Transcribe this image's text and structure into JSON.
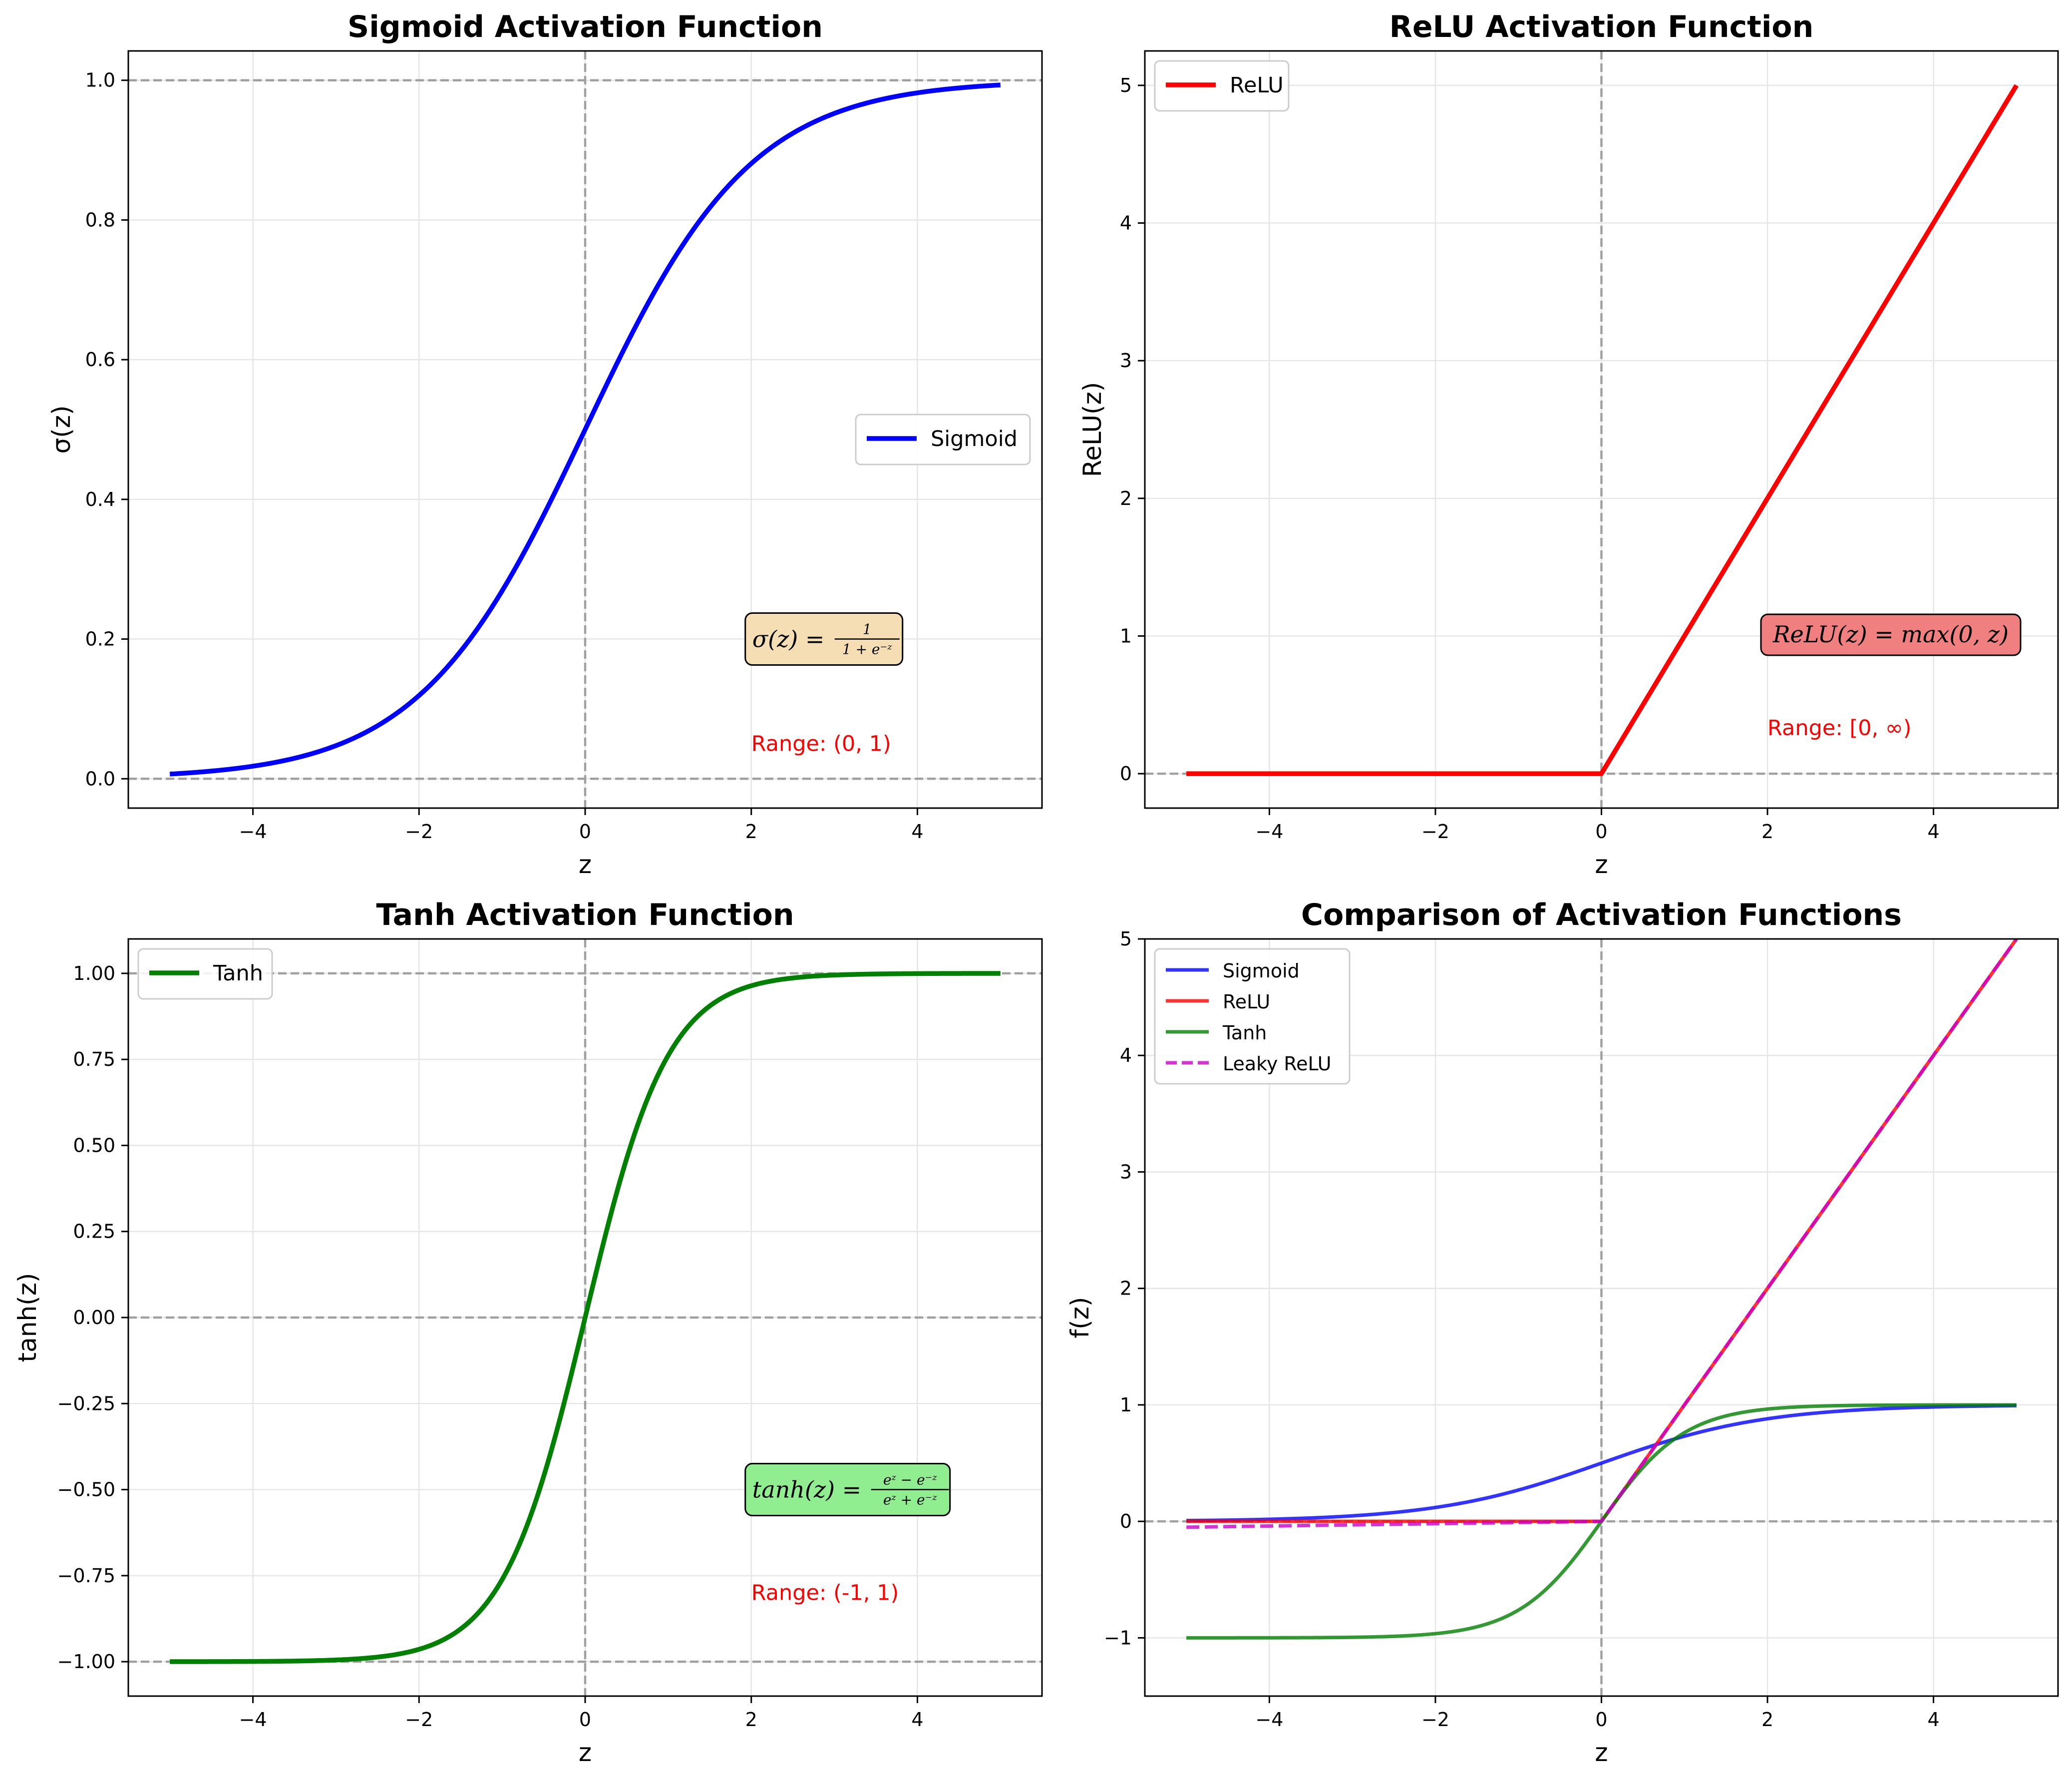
{
  "chart_data": [
    {
      "type": "line",
      "title": "Sigmoid Activation Function",
      "xlabel": "z",
      "ylabel": "σ(z)",
      "xlim": [
        -5.5,
        5.5
      ],
      "ylim": [
        -0.042,
        1.042
      ],
      "xticks": [
        -4,
        -2,
        0,
        2,
        4
      ],
      "yticks": [
        0.0,
        0.2,
        0.4,
        0.6,
        0.8,
        1.0
      ],
      "xtick_labels": [
        "−4",
        "−2",
        "0",
        "2",
        "4"
      ],
      "ytick_labels": [
        "0.0",
        "0.2",
        "0.4",
        "0.6",
        "0.8",
        "1.0"
      ],
      "grid": true,
      "legend_position": "center-right",
      "series": [
        {
          "name": "Sigmoid",
          "color": "#0000ff",
          "style": "solid",
          "function": "sigmoid",
          "x_range": [
            -5,
            5
          ],
          "x": [
            -5,
            -4,
            -3,
            -2,
            -1,
            0,
            1,
            2,
            3,
            4,
            5
          ],
          "y": [
            0.0067,
            0.018,
            0.047,
            0.119,
            0.269,
            0.5,
            0.731,
            0.881,
            0.953,
            0.982,
            0.993
          ]
        }
      ],
      "reference_lines": {
        "h": [
          0,
          1
        ],
        "v": [
          0
        ]
      },
      "formula_box": {
        "lhs": "σ(z) =",
        "num": "1",
        "den": "1 + e⁻ᶻ",
        "fill": "#f5deb3"
      },
      "range_text": "Range: (0, 1)"
    },
    {
      "type": "line",
      "title": "ReLU Activation Function",
      "xlabel": "z",
      "ylabel": "ReLU(z)",
      "xlim": [
        -5.5,
        5.5
      ],
      "ylim": [
        -0.25,
        5.25
      ],
      "xticks": [
        -4,
        -2,
        0,
        2,
        4
      ],
      "yticks": [
        0,
        1,
        2,
        3,
        4,
        5
      ],
      "xtick_labels": [
        "−4",
        "−2",
        "0",
        "2",
        "4"
      ],
      "ytick_labels": [
        "0",
        "1",
        "2",
        "3",
        "4",
        "5"
      ],
      "grid": true,
      "legend_position": "upper-left",
      "series": [
        {
          "name": "ReLU",
          "color": "#ff0000",
          "style": "solid",
          "function": "relu",
          "x_range": [
            -5,
            5
          ],
          "x": [
            -5,
            0,
            5
          ],
          "y": [
            0,
            0,
            5
          ]
        }
      ],
      "reference_lines": {
        "h": [
          0
        ],
        "v": [
          0
        ]
      },
      "formula_box": {
        "text": "ReLU(z) = max(0, z)",
        "fill": "#f08080"
      },
      "range_text": "Range: [0, ∞)"
    },
    {
      "type": "line",
      "title": "Tanh Activation Function",
      "xlabel": "z",
      "ylabel": "tanh(z)",
      "xlim": [
        -5.5,
        5.5
      ],
      "ylim": [
        -1.1,
        1.1
      ],
      "xticks": [
        -4,
        -2,
        0,
        2,
        4
      ],
      "yticks": [
        -1.0,
        -0.75,
        -0.5,
        -0.25,
        0.0,
        0.25,
        0.5,
        0.75,
        1.0
      ],
      "xtick_labels": [
        "−4",
        "−2",
        "0",
        "2",
        "4"
      ],
      "ytick_labels": [
        "−1.00",
        "−0.75",
        "−0.50",
        "−0.25",
        "0.00",
        "0.25",
        "0.50",
        "0.75",
        "1.00"
      ],
      "grid": true,
      "legend_position": "upper-left",
      "series": [
        {
          "name": "Tanh",
          "color": "#008000",
          "style": "solid",
          "function": "tanh",
          "x_range": [
            -5,
            5
          ],
          "x": [
            -5,
            -3,
            -2,
            -1,
            0,
            1,
            2,
            3,
            5
          ],
          "y": [
            -0.9999,
            -0.995,
            -0.964,
            -0.762,
            0,
            0.762,
            0.964,
            0.995,
            0.9999
          ]
        }
      ],
      "reference_lines": {
        "h": [
          -1,
          0,
          1
        ],
        "v": [
          0
        ]
      },
      "formula_box": {
        "lhs": "tanh(z) =",
        "num": "eᶻ − e⁻ᶻ",
        "den": "eᶻ + e⁻ᶻ",
        "fill": "#90ee90"
      },
      "range_text": "Range: (-1, 1)"
    },
    {
      "type": "line",
      "title": "Comparison of Activation Functions",
      "xlabel": "z",
      "ylabel": "f(z)",
      "xlim": [
        -5.5,
        5.5
      ],
      "ylim": [
        -1.5,
        5
      ],
      "xticks": [
        -4,
        -2,
        0,
        2,
        4
      ],
      "yticks": [
        -1,
        0,
        1,
        2,
        3,
        4,
        5
      ],
      "xtick_labels": [
        "−4",
        "−2",
        "0",
        "2",
        "4"
      ],
      "ytick_labels": [
        "−1",
        "0",
        "1",
        "2",
        "3",
        "4",
        "5"
      ],
      "grid": true,
      "legend_position": "upper-left",
      "series": [
        {
          "name": "Sigmoid",
          "color": "#0000ff",
          "style": "solid",
          "function": "sigmoid",
          "x_range": [
            -5,
            5
          ],
          "opacity": 0.8
        },
        {
          "name": "ReLU",
          "color": "#ff0000",
          "style": "solid",
          "function": "relu",
          "x_range": [
            -5,
            5
          ],
          "opacity": 0.8
        },
        {
          "name": "Tanh",
          "color": "#008000",
          "style": "solid",
          "function": "tanh",
          "x_range": [
            -5,
            5
          ],
          "opacity": 0.8
        },
        {
          "name": "Leaky ReLU",
          "color": "#cc00cc",
          "style": "dashed",
          "function": "leaky_relu",
          "alpha": 0.01,
          "x_range": [
            -5,
            5
          ],
          "opacity": 0.8
        }
      ],
      "reference_lines": {
        "h": [
          0
        ],
        "v": [
          0
        ]
      }
    }
  ]
}
